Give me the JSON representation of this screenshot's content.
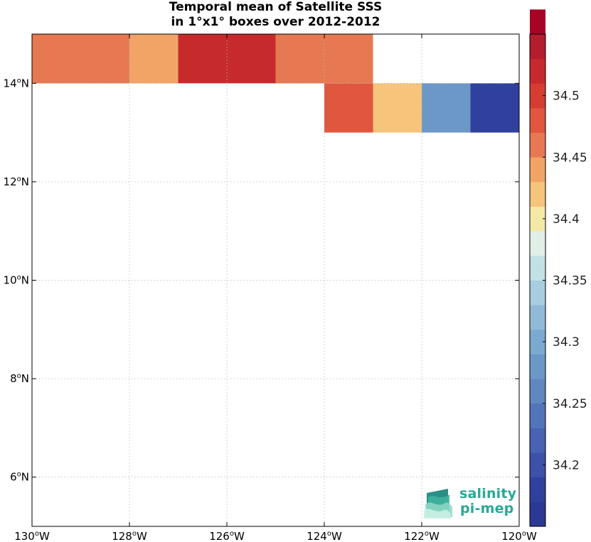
{
  "title": {
    "line1": "Temporal mean of Satellite SSS",
    "line2": "in 1°x1° boxes over 2012-2012"
  },
  "logo": {
    "line1": "salinity",
    "line2": "pi-mep"
  },
  "chart_data": {
    "type": "heatmap",
    "title": "Temporal mean of Satellite SSS in 1°x1° boxes over 2012-2012",
    "xlim": [
      -130,
      -120
    ],
    "ylim": [
      5,
      15
    ],
    "grid": true,
    "xticks": [
      {
        "v": -130,
        "label": "130",
        "unit": "o",
        "hemi": "W"
      },
      {
        "v": -128,
        "label": "128",
        "unit": "o",
        "hemi": "W"
      },
      {
        "v": -126,
        "label": "126",
        "unit": "o",
        "hemi": "W"
      },
      {
        "v": -124,
        "label": "124",
        "unit": "o",
        "hemi": "W"
      },
      {
        "v": -122,
        "label": "122",
        "unit": "o",
        "hemi": "W"
      },
      {
        "v": -120,
        "label": "120",
        "unit": "o",
        "hemi": "W"
      }
    ],
    "yticks": [
      {
        "v": 14,
        "label": "14",
        "unit": "o",
        "hemi": "N"
      },
      {
        "v": 12,
        "label": "12",
        "unit": "o",
        "hemi": "N"
      },
      {
        "v": 10,
        "label": "10",
        "unit": "o",
        "hemi": "N"
      },
      {
        "v": 8,
        "label": "8",
        "unit": "o",
        "hemi": "N"
      },
      {
        "v": 6,
        "label": "6",
        "unit": "o",
        "hemi": "N"
      }
    ],
    "cells": [
      {
        "lon": -130,
        "lat": 14,
        "value": 34.465
      },
      {
        "lon": -129,
        "lat": 14,
        "value": 34.465
      },
      {
        "lon": -128,
        "lat": 14,
        "value": 34.445
      },
      {
        "lon": -127,
        "lat": 14,
        "value": 34.525
      },
      {
        "lon": -126,
        "lat": 14,
        "value": 34.525
      },
      {
        "lon": -125,
        "lat": 14,
        "value": 34.465
      },
      {
        "lon": -124,
        "lat": 14,
        "value": 34.465
      },
      {
        "lon": -124,
        "lat": 13,
        "value": 34.485
      },
      {
        "lon": -123,
        "lat": 13,
        "value": 34.425
      },
      {
        "lon": -122,
        "lat": 13,
        "value": 34.285
      },
      {
        "lon": -121,
        "lat": 13,
        "value": 34.185
      }
    ],
    "colorbar": {
      "min": 34.15,
      "max": 34.55,
      "step": 0.02,
      "colors": [
        "#2b3894",
        "#30419d",
        "#3d51a9",
        "#4763b1",
        "#5275ba",
        "#5f87c0",
        "#6c98c8",
        "#7ba9d1",
        "#91bad8",
        "#a6cde0",
        "#c2e1e6",
        "#e1efe6",
        "#f4e8a5",
        "#f6c47b",
        "#f1a466",
        "#e67952",
        "#e1563e",
        "#d53d33",
        "#c72a2c",
        "#b31d2c",
        "#a60326"
      ],
      "ticks": [
        {
          "v": 34.2,
          "label": "34.2"
        },
        {
          "v": 34.25,
          "label": "34.25"
        },
        {
          "v": 34.3,
          "label": "34.3"
        },
        {
          "v": 34.35,
          "label": "34.35"
        },
        {
          "v": 34.4,
          "label": "34.4"
        },
        {
          "v": 34.45,
          "label": "34.45"
        },
        {
          "v": 34.5,
          "label": "34.5"
        }
      ]
    }
  }
}
